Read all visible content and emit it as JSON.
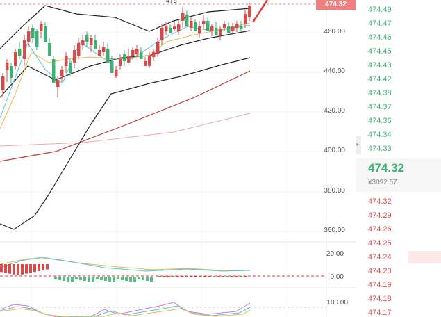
{
  "chart": {
    "current_price_tag": "474.32",
    "top_truncated_label": "476",
    "price_axis": [
      "460.00",
      "440.00",
      "420.00",
      "400.00",
      "380.00",
      "360.00"
    ],
    "macd_axis": [
      "20.00",
      "0.00"
    ],
    "kdj_axis": [
      "100.00"
    ]
  },
  "order_book": {
    "bids": [
      "474.49",
      "474.47",
      "474.46",
      "474.45",
      "474.43",
      "474.42",
      "474.38",
      "474.37",
      "474.36",
      "474.34",
      "474.33"
    ],
    "last_price": "474.32",
    "last_price_cny": "¥3092.57",
    "asks": [
      "474.32",
      "474.29",
      "474.26",
      "474.25",
      "474.24",
      "474.20",
      "474.19",
      "474.18",
      "474.17"
    ]
  },
  "colors": {
    "up": "#d94a4a",
    "down": "#3bb273",
    "price_tag": "#f08080",
    "bollinger": "#222222",
    "ma_yellow": "#e8b84a",
    "ma_cyan": "#4fc3d9",
    "ma_dark_red": "#c0392b",
    "ma_pink": "#f1a5a5"
  },
  "icons": {
    "collapse": "chevron-right-icon"
  }
}
